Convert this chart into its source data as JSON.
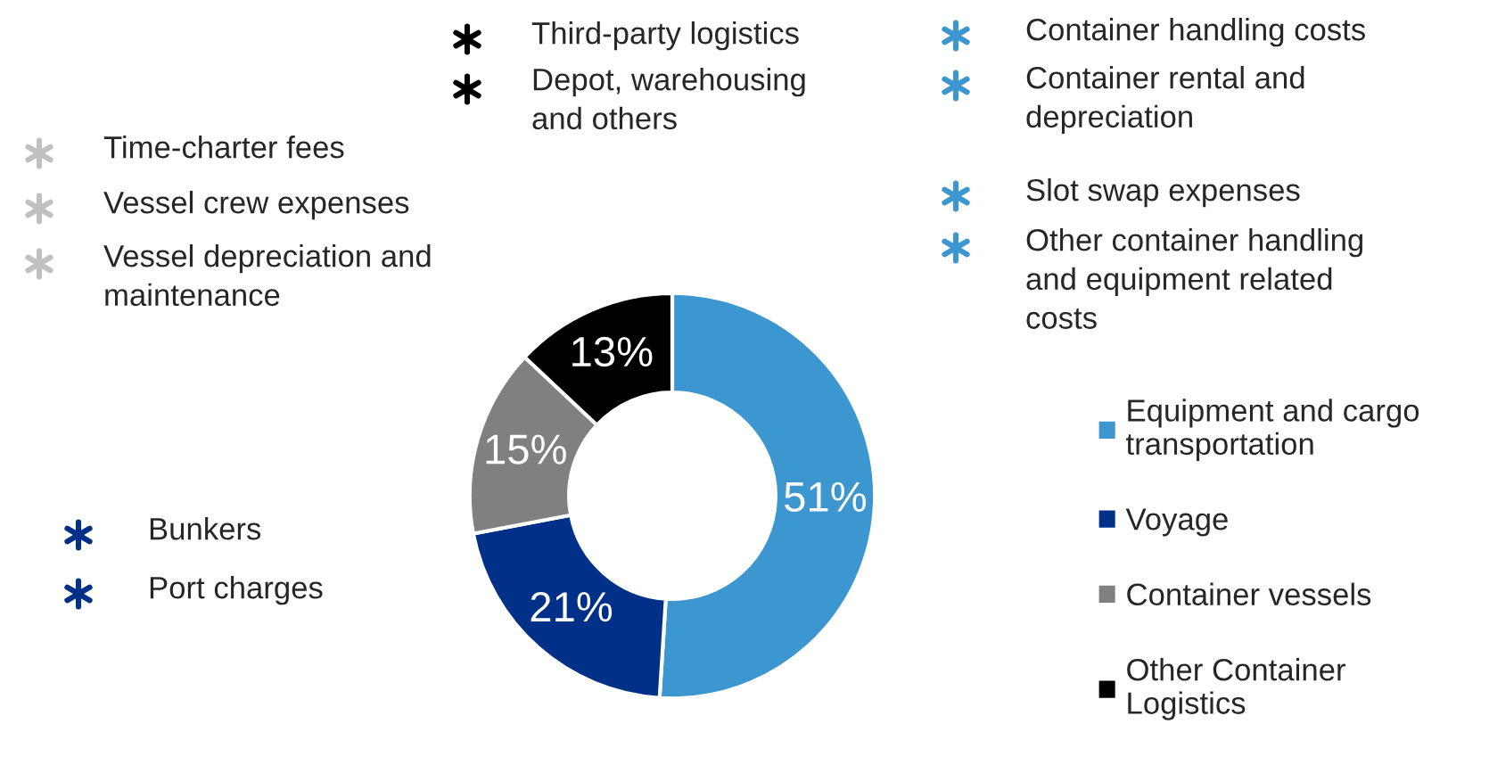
{
  "chart_data": {
    "type": "donut",
    "categories": [
      "Equipment and cargo\ntransportation",
      "Voyage",
      "Container vessels",
      "Other Container\nLogistics"
    ],
    "values": [
      51,
      21,
      15,
      13
    ],
    "colors": [
      "#3c97d0",
      "#003087",
      "#808080",
      "#000000"
    ],
    "value_labels": [
      "51%",
      "21%",
      "15%",
      "13%"
    ],
    "legend": "right",
    "annotations": [
      "Third-party logistics",
      "Depot, warehousing\nand others",
      "Time-charter fees",
      "Vessel crew expenses",
      "Vessel depreciation and\nmaintenance",
      "Container handling costs",
      "Container rental and\ndepreciation",
      "Slot swap expenses",
      "Other container handling\nand equipment related\ncosts",
      "Bunkers",
      "Port charges"
    ]
  }
}
